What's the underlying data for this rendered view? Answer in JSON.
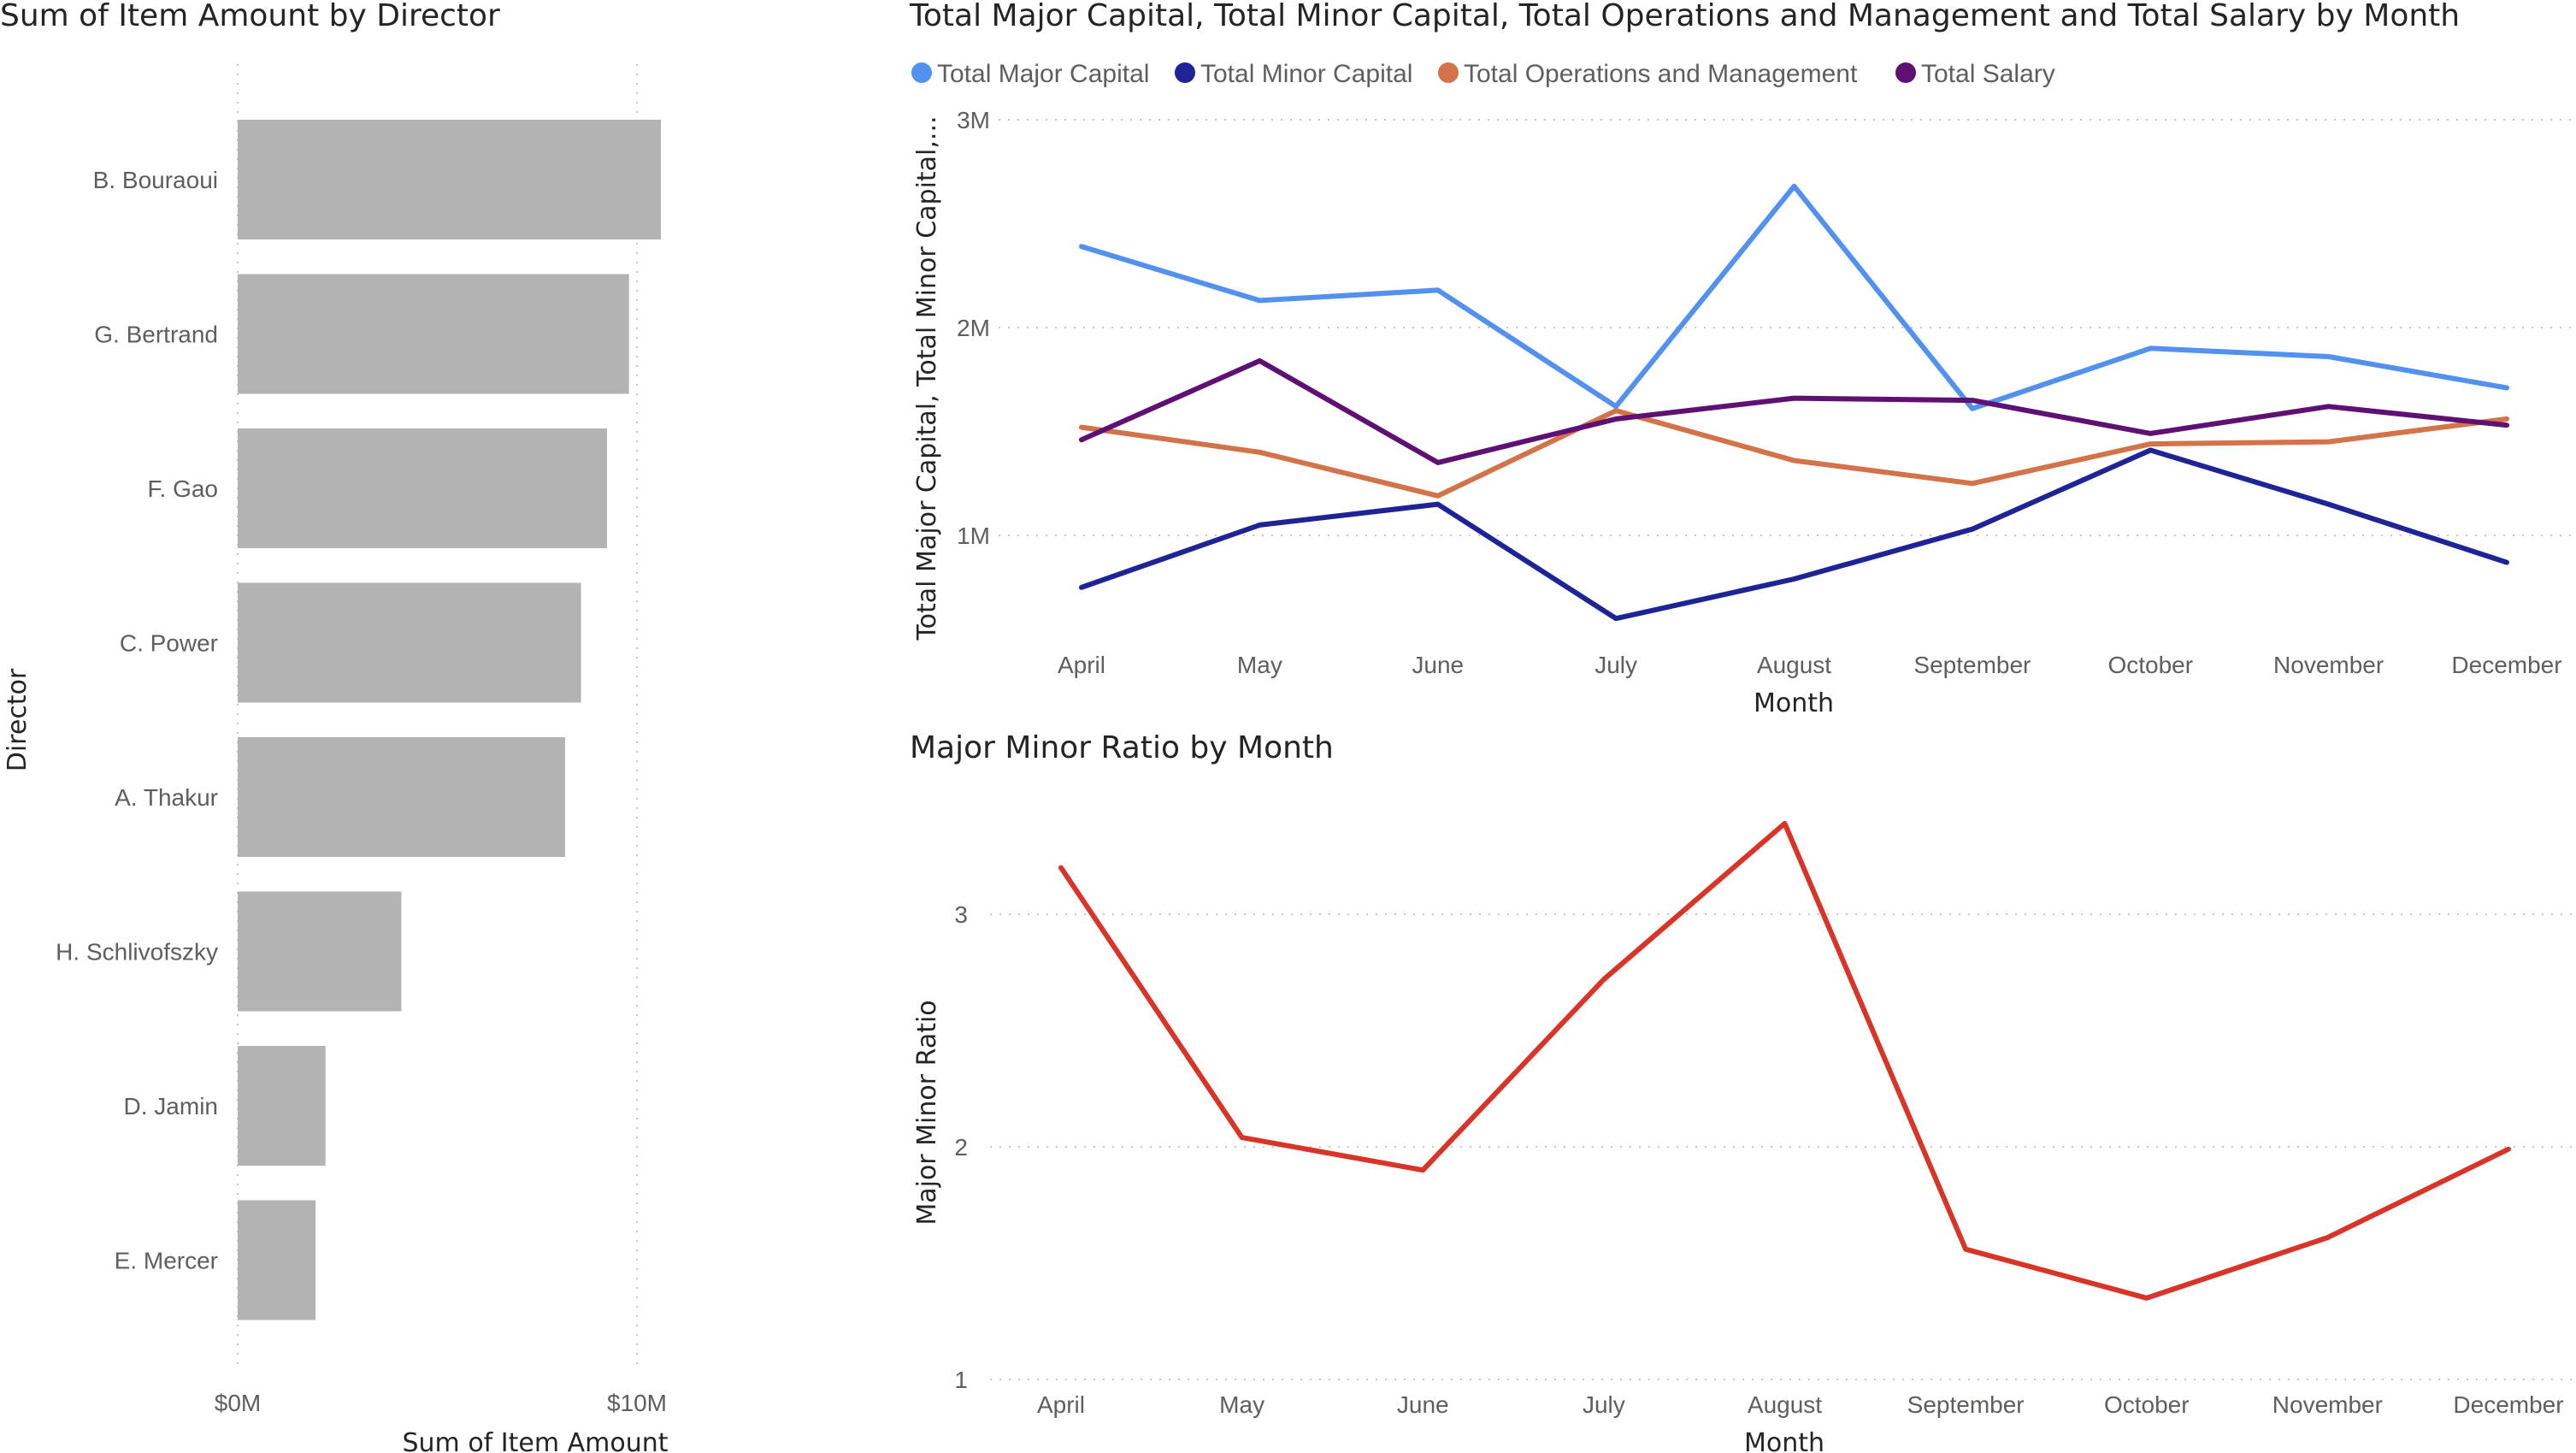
{
  "colors": {
    "bar": "#b3b3b3",
    "major_capital": "#5291ef",
    "minor_capital": "#1e2496",
    "operations": "#d2734a",
    "salary": "#5e1173",
    "ratio": "#d93428"
  },
  "chart_data": [
    {
      "type": "bar",
      "orientation": "horizontal",
      "title": "Sum of Item Amount by Director",
      "xlabel": "Sum of Item Amount",
      "ylabel": "Director",
      "categories": [
        "B. Bouraoui",
        "G. Bertrand",
        "F. Gao",
        "C. Power",
        "A. Thakur",
        "H. Schlivofszky",
        "D. Jamin",
        "E. Mercer"
      ],
      "values": [
        10.6,
        9.8,
        9.25,
        8.6,
        8.2,
        4.1,
        2.2,
        1.95
      ],
      "unit": "M",
      "xlim": [
        0,
        10.6
      ],
      "xticks": [
        "$0M",
        "$10M"
      ],
      "grid": true
    },
    {
      "type": "line",
      "title": "Total Major Capital, Total Minor Capital, Total Operations and Management and Total Salary by Month",
      "xlabel": "Month",
      "ylabel": "Total Major Capital, Total Minor Capital,...",
      "categories": [
        "April",
        "May",
        "June",
        "July",
        "August",
        "September",
        "October",
        "November",
        "December"
      ],
      "yticks": [
        "1M",
        "2M",
        "3M"
      ],
      "ylim": [
        0.5,
        3.0
      ],
      "legend_position": "top-left",
      "grid": true,
      "series": [
        {
          "name": "Total Major Capital",
          "color_key": "major_capital",
          "values": [
            2.39,
            2.13,
            2.18,
            1.62,
            2.68,
            1.61,
            1.9,
            1.86,
            1.71
          ]
        },
        {
          "name": "Total Minor Capital",
          "color_key": "minor_capital",
          "values": [
            0.75,
            1.05,
            1.15,
            0.6,
            0.79,
            1.03,
            1.41,
            1.15,
            0.87
          ]
        },
        {
          "name": "Total Operations and Management",
          "color_key": "operations",
          "values": [
            1.52,
            1.4,
            1.19,
            1.6,
            1.36,
            1.25,
            1.44,
            1.45,
            1.56
          ]
        },
        {
          "name": "Total Salary",
          "color_key": "salary",
          "values": [
            1.46,
            1.84,
            1.35,
            1.56,
            1.66,
            1.65,
            1.49,
            1.62,
            1.53
          ]
        }
      ]
    },
    {
      "type": "line",
      "title": "Major Minor Ratio by Month",
      "xlabel": "Month",
      "ylabel": "Major Minor Ratio",
      "categories": [
        "April",
        "May",
        "June",
        "July",
        "August",
        "September",
        "October",
        "November",
        "December"
      ],
      "yticks": [
        "1",
        "2",
        "3"
      ],
      "ylim": [
        1,
        3.5
      ],
      "grid": true,
      "series": [
        {
          "color_key": "ratio",
          "values": [
            3.2,
            2.04,
            1.9,
            2.72,
            3.39,
            1.56,
            1.35,
            1.61,
            1.99
          ]
        }
      ]
    }
  ]
}
